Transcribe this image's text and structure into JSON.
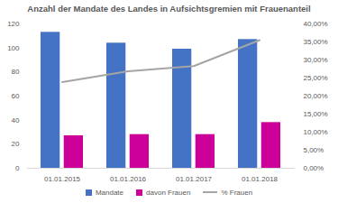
{
  "chart_data": {
    "type": "bar",
    "title": "Anzahl der Mandate des Landes in Aufsichtsgremien mit Frauenanteil",
    "categories": [
      "01.01.2015",
      "01.01.2016",
      "01.01.2017",
      "01.01.2018"
    ],
    "series": [
      {
        "name": "Mandate",
        "type": "bar",
        "color": "#4472c4",
        "values": [
          113,
          104,
          99,
          107
        ]
      },
      {
        "name": "davon Frauen",
        "type": "bar",
        "color": "#cc0099",
        "values": [
          27,
          28,
          28,
          38
        ]
      },
      {
        "name": "% Frauen",
        "type": "line",
        "color": "#a5a5a5",
        "axis": "y2",
        "values": [
          23.9,
          26.9,
          28.3,
          35.5
        ]
      }
    ],
    "ylim": [
      0,
      120
    ],
    "yticks": [
      0,
      20,
      40,
      60,
      80,
      100,
      120
    ],
    "y2lim": [
      0,
      40
    ],
    "y2ticks": [
      {
        "value": 0,
        "label": "0,00%"
      },
      {
        "value": 5,
        "label": "5,00%"
      },
      {
        "value": 10,
        "label": "10,00%"
      },
      {
        "value": 15,
        "label": "15,00%"
      },
      {
        "value": 20,
        "label": "20,00%"
      },
      {
        "value": 25,
        "label": "25,00%"
      },
      {
        "value": 30,
        "label": "30,00%"
      },
      {
        "value": 35,
        "label": "35,00%"
      },
      {
        "value": 40,
        "label": "40,00%"
      }
    ],
    "grid": false,
    "legend": "bottom"
  }
}
